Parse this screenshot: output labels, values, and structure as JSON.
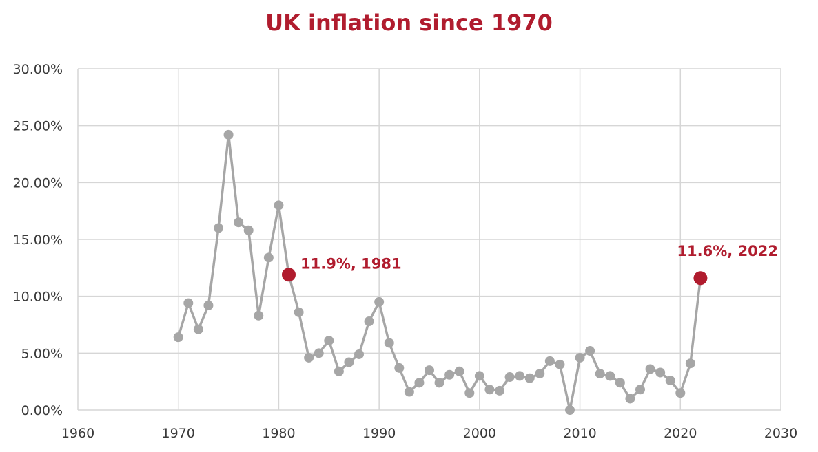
{
  "chart_data": {
    "type": "scatter",
    "title": "UK inflation since 1970",
    "xlabel": "",
    "ylabel": "",
    "xlim": [
      1960,
      2030
    ],
    "ylim": [
      0,
      30
    ],
    "x_ticks": [
      "1960",
      "1970",
      "1980",
      "1990",
      "2000",
      "2010",
      "2020",
      "2030"
    ],
    "y_ticks": [
      "0.00%",
      "5.00%",
      "10.00%",
      "15.00%",
      "20.00%",
      "25.00%",
      "30.00%"
    ],
    "grid": true,
    "series_color": "#a6a6a6",
    "highlight_color": "#b01c2e",
    "x": [
      1970,
      1971,
      1972,
      1973,
      1974,
      1975,
      1976,
      1977,
      1978,
      1979,
      1980,
      1981,
      1982,
      1983,
      1984,
      1985,
      1986,
      1987,
      1988,
      1989,
      1990,
      1991,
      1992,
      1993,
      1994,
      1995,
      1996,
      1997,
      1998,
      1999,
      2000,
      2001,
      2002,
      2003,
      2004,
      2005,
      2006,
      2007,
      2008,
      2009,
      2010,
      2011,
      2012,
      2013,
      2014,
      2015,
      2016,
      2017,
      2018,
      2019,
      2020,
      2021,
      2022
    ],
    "y": [
      6.4,
      9.4,
      7.1,
      9.2,
      16.0,
      24.2,
      16.5,
      15.8,
      8.3,
      13.4,
      18.0,
      11.9,
      8.6,
      4.6,
      5.0,
      6.1,
      3.4,
      4.2,
      4.9,
      7.8,
      9.5,
      5.9,
      3.7,
      1.6,
      2.4,
      3.5,
      2.4,
      3.1,
      3.4,
      1.5,
      3.0,
      1.8,
      1.7,
      2.9,
      3.0,
      2.8,
      3.2,
      4.3,
      4.0,
      0.0,
      4.6,
      5.2,
      3.2,
      3.0,
      2.4,
      1.0,
      1.8,
      3.6,
      3.3,
      2.6,
      1.5,
      4.1,
      11.6
    ],
    "annotations": [
      {
        "x": 1981,
        "y": 11.9,
        "label": "11.9%, 1981"
      },
      {
        "x": 2022,
        "y": 11.6,
        "label": "11.6%, 2022"
      }
    ]
  }
}
